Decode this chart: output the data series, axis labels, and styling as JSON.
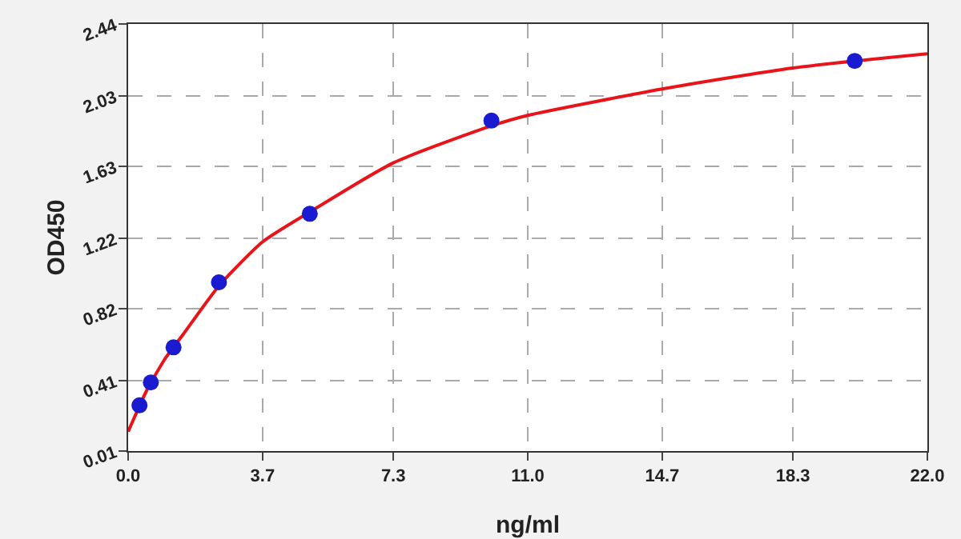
{
  "chart_data": {
    "type": "scatter",
    "xlabel": "ng/ml",
    "ylabel": "OD450",
    "xlim": [
      0,
      22
    ],
    "xticks": [
      {
        "value": 0,
        "label": "0.0"
      },
      3.7,
      7.3,
      {
        "value": 11,
        "label": "11.0"
      },
      14.7,
      18.3,
      {
        "value": 22,
        "label": "22.0"
      }
    ],
    "ylim": [
      0.01,
      2.44
    ],
    "yticks": [
      0.01,
      0.41,
      0.82,
      1.22,
      1.63,
      2.03,
      2.44
    ],
    "grid": true,
    "series": [
      {
        "type": "line",
        "color": "#e8141a",
        "line_style": "solid",
        "marker": "none",
        "x": [
          0,
          0.5,
          1,
          1.5,
          2.5,
          3.7,
          5,
          7.3,
          10,
          11,
          14.7,
          18.3,
          22
        ],
        "values": [
          0.12,
          0.35,
          0.53,
          0.67,
          0.95,
          1.2,
          1.37,
          1.65,
          1.86,
          1.92,
          2.07,
          2.19,
          2.27
        ]
      },
      {
        "type": "scatter",
        "color": "#1a1ad0",
        "marker": "circle",
        "x": [
          0.3125,
          0.625,
          1.25,
          2.5,
          5,
          10,
          20
        ],
        "values": [
          0.27,
          0.4,
          0.6,
          0.97,
          1.36,
          1.89,
          2.23
        ]
      }
    ]
  }
}
